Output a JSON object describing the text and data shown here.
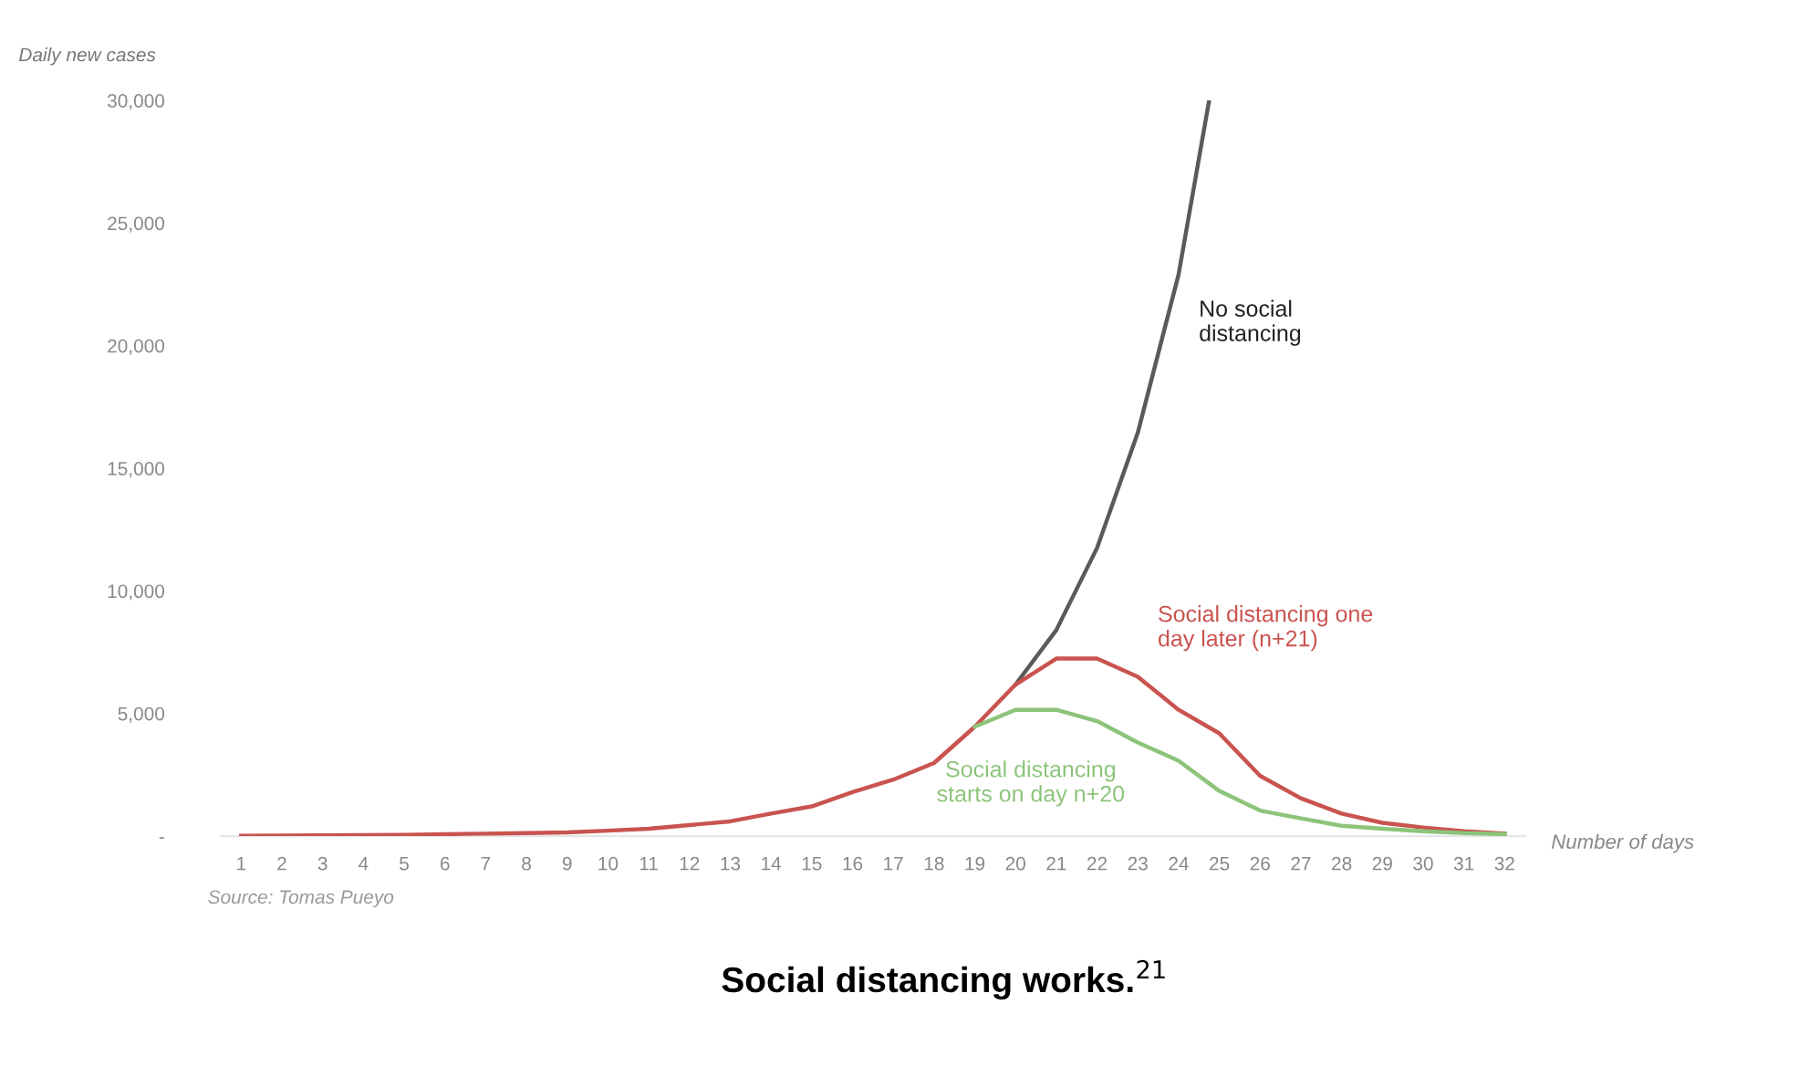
{
  "chart_data": {
    "type": "line",
    "title": "Social distancing works.$^{21}$",
    "xlabel": "Number of days",
    "ylabel": "Daily new cases",
    "annotations": [
      "Source: Tomas Pueyo"
    ],
    "xlim": [
      0.5,
      32.5
    ],
    "xticks": [
      1,
      2,
      3,
      4,
      5,
      6,
      7,
      8,
      9,
      10,
      11,
      12,
      13,
      14,
      15,
      16,
      17,
      18,
      19,
      20,
      21,
      22,
      23,
      24,
      25,
      26,
      27,
      28,
      29,
      30,
      31,
      32
    ],
    "ylim": [
      0,
      30000
    ],
    "yticks": [
      {
        "value": 0,
        "label": "-"
      },
      {
        "value": 5000,
        "label": "5,000"
      },
      {
        "value": 10000,
        "label": "10,000"
      },
      {
        "value": 15000,
        "label": "15,000"
      },
      {
        "value": 20000,
        "label": "20,000"
      },
      {
        "value": 25000,
        "label": "25,000"
      },
      {
        "value": 30000,
        "label": "30,000"
      }
    ],
    "grid": false,
    "legend": false,
    "marker": "none",
    "line_style": "solid",
    "series": [
      {
        "name": "No social distancing",
        "color": "#5a5a5a",
        "x": [
          20,
          21,
          22,
          23,
          24,
          24.75
        ],
        "values": [
          6180,
          8400,
          11750,
          16450,
          22900,
          30000
        ]
      },
      {
        "name": "Social distancing starts on day n+20",
        "color": "#8cc47a",
        "x": [
          19,
          20,
          21,
          22,
          23,
          24,
          25,
          26,
          27,
          28,
          29,
          30,
          31,
          32
        ],
        "values": [
          4460,
          5150,
          5150,
          4690,
          3820,
          3070,
          1840,
          1040,
          720,
          420,
          300,
          200,
          120,
          80
        ]
      },
      {
        "name": "Social distancing one day later (n+21)",
        "color": "#c9534f",
        "x": [
          1,
          2,
          3,
          4,
          5,
          6,
          7,
          8,
          9,
          10,
          11,
          12,
          13,
          14,
          15,
          16,
          17,
          18,
          19,
          20,
          21,
          22,
          23,
          24,
          25,
          26,
          27,
          28,
          29,
          30,
          31,
          32
        ],
        "values": [
          10,
          20,
          30,
          40,
          50,
          80,
          100,
          120,
          150,
          220,
          300,
          450,
          600,
          920,
          1210,
          1790,
          2300,
          2980,
          4460,
          6180,
          7240,
          7240,
          6500,
          5150,
          4190,
          2460,
          1540,
          920,
          540,
          350,
          200,
          100
        ]
      }
    ]
  }
}
